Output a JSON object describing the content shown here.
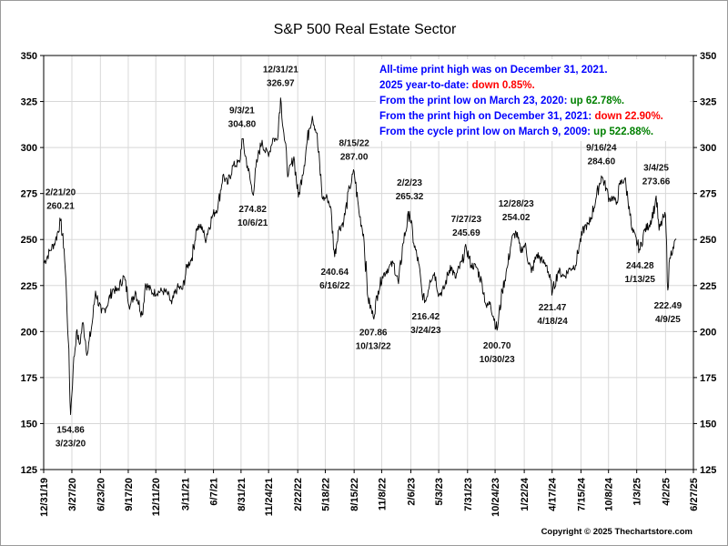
{
  "chart_data": {
    "type": "line",
    "title": "S&P 500 Real Estate Sector",
    "xlabel": "",
    "ylabel": "",
    "ylim": [
      125,
      350
    ],
    "yticks": [
      125,
      150,
      175,
      200,
      225,
      250,
      275,
      300,
      325,
      350
    ],
    "grid": true,
    "right_axis": true,
    "x_tick_labels": [
      "12/31/19",
      "3/27/20",
      "6/23/20",
      "9/17/20",
      "12/11/20",
      "3/11/21",
      "6/7/21",
      "8/31/21",
      "11/24/21",
      "2/22/22",
      "5/18/22",
      "8/15/22",
      "11/8/22",
      "2/6/23",
      "5/3/23",
      "7/31/23",
      "10/24/23",
      "1/22/24",
      "4/17/24",
      "7/15/24",
      "10/8/24",
      "1/3/25",
      "4/2/25",
      "6/27/25"
    ],
    "series": [
      {
        "values": [
          [
            "2019-12-31",
            237
          ],
          [
            "2020-01-20",
            244
          ],
          [
            "2020-02-05",
            249
          ],
          [
            "2020-02-21",
            260.21
          ],
          [
            "2020-03-03",
            245
          ],
          [
            "2020-03-10",
            222
          ],
          [
            "2020-03-16",
            195
          ],
          [
            "2020-03-23",
            154.86
          ],
          [
            "2020-03-31",
            180
          ],
          [
            "2020-04-10",
            200
          ],
          [
            "2020-04-20",
            193
          ],
          [
            "2020-04-30",
            205
          ],
          [
            "2020-05-14",
            188
          ],
          [
            "2020-05-29",
            205
          ],
          [
            "2020-06-08",
            222
          ],
          [
            "2020-06-26",
            210
          ],
          [
            "2020-07-10",
            213
          ],
          [
            "2020-07-31",
            223
          ],
          [
            "2020-08-14",
            222
          ],
          [
            "2020-09-03",
            230
          ],
          [
            "2020-09-23",
            214
          ],
          [
            "2020-10-09",
            222
          ],
          [
            "2020-10-30",
            209
          ],
          [
            "2020-11-09",
            226
          ],
          [
            "2020-12-01",
            221
          ],
          [
            "2020-12-31",
            222
          ],
          [
            "2021-01-15",
            221
          ],
          [
            "2021-01-29",
            215
          ],
          [
            "2021-02-15",
            224
          ],
          [
            "2021-03-04",
            223
          ],
          [
            "2021-03-17",
            235
          ],
          [
            "2021-04-01",
            240
          ],
          [
            "2021-04-16",
            256
          ],
          [
            "2021-05-03",
            257
          ],
          [
            "2021-05-12",
            250
          ],
          [
            "2021-06-04",
            263
          ],
          [
            "2021-06-21",
            268
          ],
          [
            "2021-07-06",
            285
          ],
          [
            "2021-07-20",
            280
          ],
          [
            "2021-08-06",
            290
          ],
          [
            "2021-08-27",
            292
          ],
          [
            "2021-09-03",
            304.8
          ],
          [
            "2021-09-20",
            290
          ],
          [
            "2021-10-06",
            274.82
          ],
          [
            "2021-10-22",
            295
          ],
          [
            "2021-11-04",
            304
          ],
          [
            "2021-11-12",
            298
          ],
          [
            "2021-11-26",
            297
          ],
          [
            "2021-12-07",
            305
          ],
          [
            "2021-12-20",
            304
          ],
          [
            "2021-12-31",
            326.97
          ],
          [
            "2022-01-10",
            308
          ],
          [
            "2022-01-24",
            285
          ],
          [
            "2022-02-10",
            295
          ],
          [
            "2022-02-24",
            273
          ],
          [
            "2022-03-08",
            285
          ],
          [
            "2022-03-29",
            310
          ],
          [
            "2022-04-08",
            317
          ],
          [
            "2022-04-21",
            308
          ],
          [
            "2022-05-10",
            272
          ],
          [
            "2022-05-24",
            273
          ],
          [
            "2022-06-03",
            268
          ],
          [
            "2022-06-16",
            240.64
          ],
          [
            "2022-06-27",
            255
          ],
          [
            "2022-07-14",
            260
          ],
          [
            "2022-08-01",
            278
          ],
          [
            "2022-08-15",
            287.0
          ],
          [
            "2022-08-30",
            265
          ],
          [
            "2022-09-13",
            253
          ],
          [
            "2022-09-27",
            218
          ],
          [
            "2022-10-13",
            207.86
          ],
          [
            "2022-10-28",
            222
          ],
          [
            "2022-11-10",
            230
          ],
          [
            "2022-11-30",
            235
          ],
          [
            "2022-12-15",
            237
          ],
          [
            "2022-12-30",
            226
          ],
          [
            "2023-01-13",
            248
          ],
          [
            "2023-02-02",
            265.32
          ],
          [
            "2023-02-15",
            248
          ],
          [
            "2023-03-02",
            237
          ],
          [
            "2023-03-13",
            220
          ],
          [
            "2023-03-24",
            216.42
          ],
          [
            "2023-04-06",
            228
          ],
          [
            "2023-04-20",
            232
          ],
          [
            "2023-05-04",
            220
          ],
          [
            "2023-05-19",
            223
          ],
          [
            "2023-06-08",
            236
          ],
          [
            "2023-06-23",
            229
          ],
          [
            "2023-07-14",
            238
          ],
          [
            "2023-07-27",
            245.69
          ],
          [
            "2023-08-11",
            236
          ],
          [
            "2023-08-28",
            235
          ],
          [
            "2023-09-14",
            226
          ],
          [
            "2023-09-28",
            213
          ],
          [
            "2023-10-09",
            216
          ],
          [
            "2023-10-30",
            200.7
          ],
          [
            "2023-11-15",
            222
          ],
          [
            "2023-12-01",
            235
          ],
          [
            "2023-12-14",
            250
          ],
          [
            "2023-12-28",
            254.02
          ],
          [
            "2024-01-10",
            244
          ],
          [
            "2024-01-24",
            247
          ],
          [
            "2024-02-13",
            232
          ],
          [
            "2024-03-01",
            242
          ],
          [
            "2024-03-18",
            238
          ],
          [
            "2024-04-01",
            236
          ],
          [
            "2024-04-18",
            221.47
          ],
          [
            "2024-05-06",
            233
          ],
          [
            "2024-05-24",
            230
          ],
          [
            "2024-06-10",
            234
          ],
          [
            "2024-06-28",
            236
          ],
          [
            "2024-07-11",
            248
          ],
          [
            "2024-07-26",
            257
          ],
          [
            "2024-08-09",
            258
          ],
          [
            "2024-08-30",
            272
          ],
          [
            "2024-09-16",
            284.6
          ],
          [
            "2024-10-01",
            278
          ],
          [
            "2024-10-10",
            272
          ],
          [
            "2024-10-22",
            273
          ],
          [
            "2024-11-01",
            269
          ],
          [
            "2024-11-12",
            280
          ],
          [
            "2024-11-27",
            283
          ],
          [
            "2024-12-11",
            268
          ],
          [
            "2024-12-19",
            255
          ],
          [
            "2025-01-13",
            244.28
          ],
          [
            "2025-01-27",
            255
          ],
          [
            "2025-02-11",
            258
          ],
          [
            "2025-02-28",
            268
          ],
          [
            "2025-03-04",
            273.66
          ],
          [
            "2025-03-13",
            255
          ],
          [
            "2025-03-27",
            262
          ],
          [
            "2025-04-02",
            263
          ],
          [
            "2025-04-09",
            222.49
          ],
          [
            "2025-04-15",
            240
          ],
          [
            "2025-04-25",
            246
          ],
          [
            "2025-05-05",
            250
          ]
        ]
      }
    ],
    "annotations": [
      {
        "date": "2020-02-21",
        "label": "2/21/20",
        "value": "260.21",
        "side": "above"
      },
      {
        "date": "2020-03-23",
        "label": "154.86",
        "value": "3/23/20",
        "side": "below"
      },
      {
        "date": "2021-09-03",
        "label": "9/3/21",
        "value": "304.80",
        "side": "above"
      },
      {
        "date": "2021-10-06",
        "label": "274.82",
        "value": "10/6/21",
        "side": "below"
      },
      {
        "date": "2021-12-31",
        "label": "12/31/21",
        "value": "326.97",
        "side": "above"
      },
      {
        "date": "2022-06-16",
        "label": "240.64",
        "value": "6/16/22",
        "side": "below"
      },
      {
        "date": "2022-08-15",
        "label": "8/15/22",
        "value": "287.00",
        "side": "above"
      },
      {
        "date": "2022-10-13",
        "label": "207.86",
        "value": "10/13/22",
        "side": "below"
      },
      {
        "date": "2023-02-02",
        "label": "2/2/23",
        "value": "265.32",
        "side": "above"
      },
      {
        "date": "2023-03-24",
        "label": "216.42",
        "value": "3/24/23",
        "side": "below"
      },
      {
        "date": "2023-07-27",
        "label": "7/27/23",
        "value": "245.69",
        "side": "above"
      },
      {
        "date": "2023-10-30",
        "label": "200.70",
        "value": "10/30/23",
        "side": "below"
      },
      {
        "date": "2023-12-28",
        "label": "12/28/23",
        "value": "254.02",
        "side": "above"
      },
      {
        "date": "2024-04-18",
        "label": "221.47",
        "value": "4/18/24",
        "side": "below"
      },
      {
        "date": "2024-09-16",
        "label": "9/16/24",
        "value": "284.60",
        "side": "above"
      },
      {
        "date": "2025-01-13",
        "label": "244.28",
        "value": "1/13/25",
        "side": "below"
      },
      {
        "date": "2025-03-04",
        "label": "3/4/25",
        "value": "273.66",
        "side": "above"
      },
      {
        "date": "2025-04-09",
        "label": "222.49",
        "value": "4/9/25",
        "side": "below"
      }
    ],
    "notes": [
      [
        {
          "text": "All-time print high was on December 31, 2021.",
          "color": "#0000ff"
        }
      ],
      [
        {
          "text": "2025 year-to-date: ",
          "color": "#0000ff"
        },
        {
          "text": "down 0.85%.",
          "color": "#ff0000"
        }
      ],
      [
        {
          "text": "From the print low on March 23, 2020:  ",
          "color": "#0000ff"
        },
        {
          "text": "up 62.78%.",
          "color": "#008000"
        }
      ],
      [
        {
          "text": "From the print high on December 31, 2021:  ",
          "color": "#0000ff"
        },
        {
          "text": "down 22.90%.",
          "color": "#ff0000"
        }
      ],
      [
        {
          "text": "From the cycle print low on March 9, 2009:  ",
          "color": "#0000ff"
        },
        {
          "text": "up 522.88%.",
          "color": "#008000"
        }
      ]
    ],
    "copyright": "Copyright © 2025 Thechartstore.com"
  }
}
